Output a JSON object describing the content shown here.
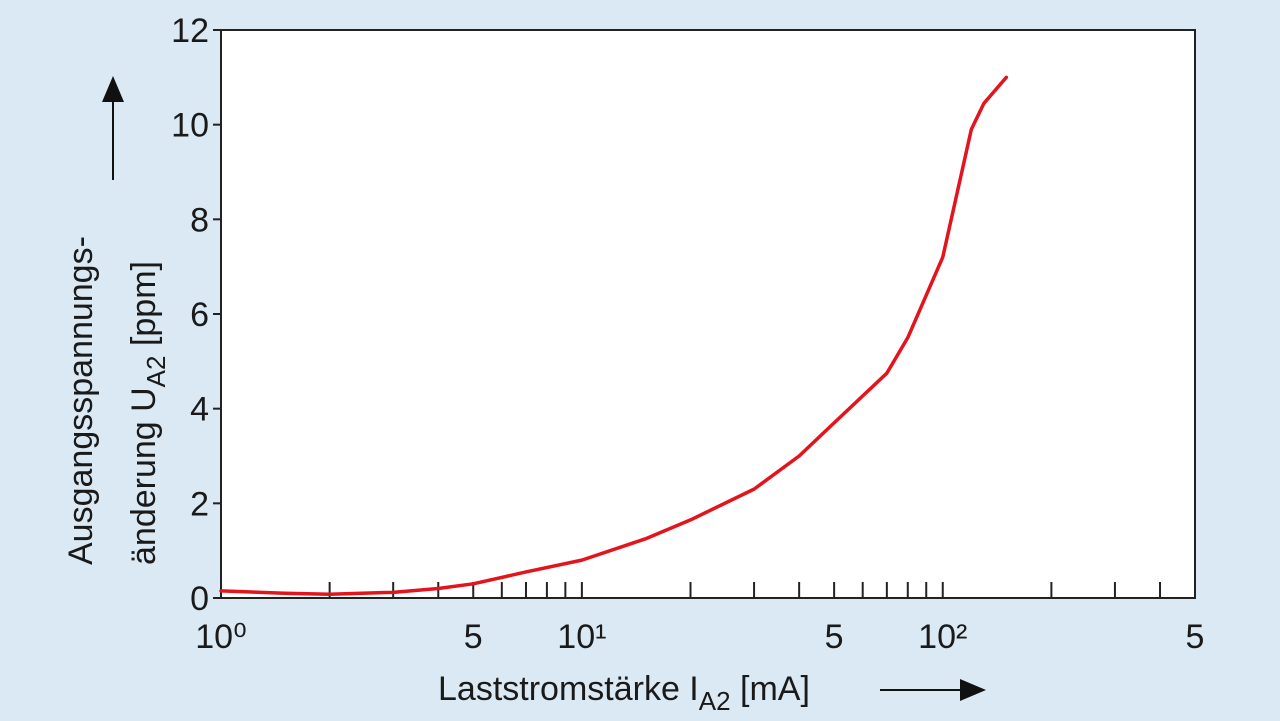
{
  "chart_data": {
    "type": "line",
    "x_label": "Laststromstärke I",
    "x_label_sub": "A2",
    "x_label_unit": "[mA]",
    "y_label_line1": "Ausgangsspannungs-",
    "y_label_line2": "änderung U",
    "y_label_sub": "A2",
    "y_label_unit": "[ppm]",
    "x_log": true,
    "xlim": [
      1,
      500
    ],
    "xticks": [
      {
        "value": 1,
        "label": "10⁰"
      },
      5,
      {
        "value": 10,
        "label": "10¹"
      },
      {
        "value": 50,
        "label": "5"
      },
      {
        "value": 100,
        "label": "10²"
      },
      {
        "value": 500,
        "label": "5"
      }
    ],
    "xminorticks": [
      2,
      3,
      4,
      6,
      7,
      8,
      9,
      20,
      30,
      40,
      60,
      70,
      80,
      90,
      200,
      300,
      400
    ],
    "ylim": [
      0,
      12
    ],
    "yticks": [
      0,
      2,
      4,
      6,
      8,
      10,
      12
    ],
    "series": [
      {
        "color": "#e3141b",
        "x": [
          1,
          1.5,
          2,
          3,
          4,
          5,
          7,
          10,
          15,
          20,
          30,
          40,
          50,
          70,
          80,
          100,
          120,
          130,
          150
        ],
        "values": [
          0.15,
          0.1,
          0.08,
          0.12,
          0.2,
          0.3,
          0.55,
          0.8,
          1.25,
          1.65,
          2.3,
          3.0,
          3.7,
          4.75,
          5.5,
          7.2,
          9.9,
          10.45,
          11
        ]
      }
    ]
  }
}
